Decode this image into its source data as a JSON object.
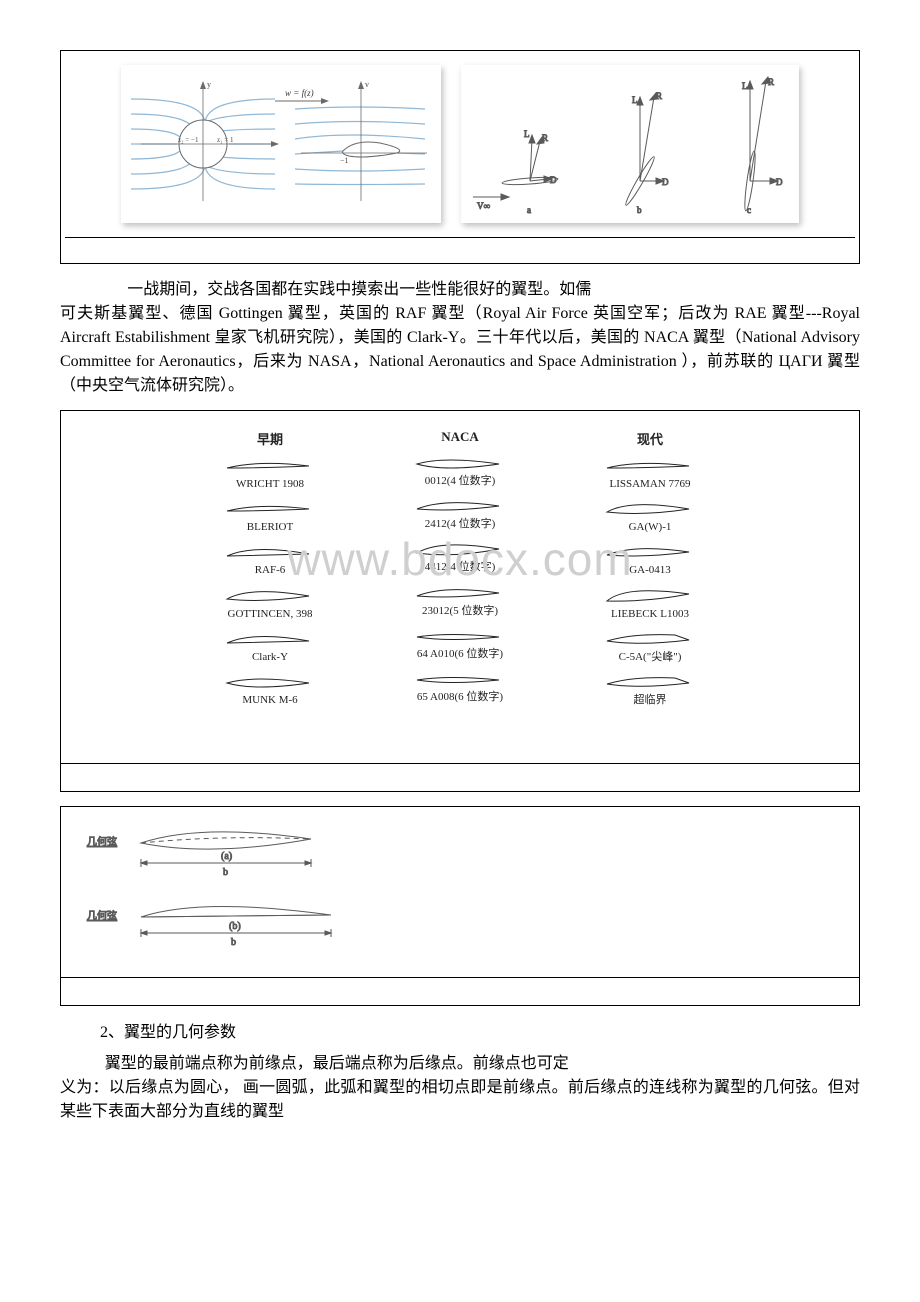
{
  "colors": {
    "text": "#000000",
    "frame": "#000000",
    "flowline": "#8fb7d6",
    "axis": "#6a6a6a",
    "sketch": "#5a5a5a",
    "watermark": "#cfcfcf",
    "shadow": "rgba(0,0,0,0.25)",
    "bg": "#ffffff"
  },
  "fig_top": {
    "left": {
      "eq_label": "w = f(z)",
      "z_left": "z₂ = −1",
      "z_right": "z₁ = 1",
      "right_tick": "−1",
      "axis_y": "y",
      "axis_v": "v"
    },
    "right": {
      "labels": [
        "R",
        "L",
        "D",
        "a",
        "b",
        "c",
        "V∞"
      ]
    }
  },
  "para1_prefix": "一战期间，交战各国都在实践中摸索出一些性能很好的翼型。如儒",
  "para1_rest": "可夫斯基翼型、德国 Gottingen 翼型，英国的 RAF 翼型（Royal Air Force 英国空军；后改为 RAE 翼型---Royal Aircraft Estabilishment 皇家飞机研究院），美国的 Clark-Y。三十年代以后，美国的 NACA 翼型（National Advisory Committee for Aeronautics，后来为 NASA，National Aeronautics and Space Administration ），前苏联的 ЦАГИ 翼型（中央空气流体研究院）。",
  "airfoil_table": {
    "watermark": "www.bdocx.com",
    "columns": [
      {
        "header": "早期",
        "items": [
          {
            "label": "WRICHT 1908",
            "shape": "thin-camber"
          },
          {
            "label": "BLERIOT",
            "shape": "thin-camber"
          },
          {
            "label": "RAF-6",
            "shape": "flat-bottom"
          },
          {
            "label": "GOTTINCEN, 398",
            "shape": "thick-camber"
          },
          {
            "label": "Clark-Y",
            "shape": "flat-bottom"
          },
          {
            "label": "MUNK M-6",
            "shape": "symmetric"
          }
        ]
      },
      {
        "header": "NACA",
        "items": [
          {
            "label": "0012(4 位数字)",
            "shape": "symmetric"
          },
          {
            "label": "2412(4 位数字)",
            "shape": "camber"
          },
          {
            "label": "4412(4 位数字)",
            "shape": "camber-thick"
          },
          {
            "label": "23012(5 位数字)",
            "shape": "camber"
          },
          {
            "label": "64 A010(6 位数字)",
            "shape": "thin-sym"
          },
          {
            "label": "65 A008(6 位数字)",
            "shape": "thin-sym"
          }
        ]
      },
      {
        "header": "现代",
        "items": [
          {
            "label": "LISSAMAN 7769",
            "shape": "thin-camber"
          },
          {
            "label": "GA(W)-1",
            "shape": "thick-camber"
          },
          {
            "label": "GA-0413",
            "shape": "camber"
          },
          {
            "label": "LIEBECK L1003",
            "shape": "high-camber"
          },
          {
            "label": "C-5A(\"尖峰\")",
            "shape": "supercrit"
          },
          {
            "label": "超临界",
            "shape": "supercrit"
          }
        ]
      }
    ]
  },
  "chord_fig": {
    "row_label": "几何弦",
    "a": "(a)",
    "b": "(b)",
    "chord": "b"
  },
  "section2_title": "2、翼型的几何参数",
  "para2_line1": "翼型的最前端点称为前缘点，最后端点称为后缘点。前缘点也可定",
  "para2_rest": "义为：以后缘点为圆心， 画一圆弧，此弧和翼型的相切点即是前缘点。前后缘点的连线称为翼型的几何弦。但对某些下表面大部分为直线的翼型"
}
